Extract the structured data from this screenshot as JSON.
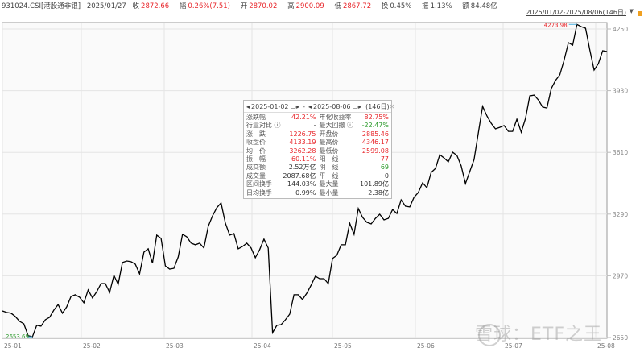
{
  "header": {
    "code": "931024.CSI[港股通非银]",
    "date": "2025/01/27",
    "close_label": "收",
    "close": "2872.66",
    "change_label": "幅",
    "change": "0.26%(7.51)",
    "open_label": "开",
    "open": "2870.02",
    "high_label": "高",
    "high": "2900.09",
    "low_label": "低",
    "low": "2867.72",
    "turnover_label": "换",
    "turnover": "0.45%",
    "amplitude_label": "振",
    "amplitude": "1.13%",
    "amount_label": "额",
    "amount": "84.48亿"
  },
  "range_selector": {
    "label": "2025/01/02-2025/08/06(146日)"
  },
  "tooltip": {
    "start_date": "2025-01-02",
    "end_date": "2025-08-06",
    "days": "(146日)",
    "sep": "-",
    "rows": [
      {
        "l1": "涨跌幅",
        "v1": "42.21%",
        "c1": "red",
        "l2": "年化收益率",
        "v2": "82.75%",
        "c2": "red"
      },
      {
        "l1": "行业对比 ⓘ",
        "v1": "-",
        "c1": "dark",
        "l2": "最大回撤 ⓘ",
        "v2": "-22.47%",
        "c2": "green"
      },
      {
        "l1": "涨　跌",
        "v1": "1226.75",
        "c1": "red",
        "l2": "开盘价",
        "v2": "2885.46",
        "c2": "red"
      },
      {
        "l1": "收盘价",
        "v1": "4133.19",
        "c1": "red",
        "l2": "最高价",
        "v2": "4346.17",
        "c2": "red"
      },
      {
        "l1": "均　价",
        "v1": "3262.28",
        "c1": "red",
        "l2": "最低价",
        "v2": "2599.08",
        "c2": "red"
      },
      {
        "l1": "振　幅",
        "v1": "60.11%",
        "c1": "red",
        "l2": "阳　线",
        "v2": "77",
        "c2": "red"
      },
      {
        "l1": "成交额",
        "v1": "2.52万亿",
        "c1": "dark",
        "l2": "阴　线",
        "v2": "69",
        "c2": "green"
      },
      {
        "l1": "成交量",
        "v1": "2087.68亿",
        "c1": "dark",
        "l2": "平　线",
        "v2": "0",
        "c2": "dark"
      },
      {
        "l1": "区间换手",
        "v1": "144.03%",
        "c1": "dark",
        "l2": "最大量",
        "v2": "101.89亿",
        "c2": "dark"
      },
      {
        "l1": "日均换手",
        "v1": "0.99%",
        "c1": "dark",
        "l2": "最小量",
        "v2": "2.38亿",
        "c2": "dark"
      }
    ]
  },
  "watermark": "雪球：ETF之王",
  "chart_data": {
    "type": "line",
    "x_tick_labels": [
      "25-01",
      "25-02",
      "25-03",
      "25-04",
      "25-05",
      "25-06",
      "25-07",
      "25-08"
    ],
    "y_ticks": [
      4250,
      3930,
      3610,
      3290,
      2970,
      2650
    ],
    "ylim": [
      2650,
      4270
    ],
    "max_label": "4273.98",
    "min_label": "2653.69",
    "line_color": "#000000",
    "max_color": "#e8262b",
    "min_color": "#2a9a2a",
    "values": [
      2788,
      2780,
      2776,
      2759,
      2734,
      2721,
      2659,
      2653.69,
      2713,
      2709,
      2742,
      2755,
      2792,
      2821,
      2776,
      2809,
      2863,
      2872,
      2859,
      2830,
      2897,
      2855,
      2888,
      2930,
      2930,
      2884,
      2972,
      2926,
      3039,
      3047,
      3043,
      3030,
      2980,
      3093,
      3110,
      3035,
      3181,
      3164,
      3022,
      3005,
      3009,
      3068,
      3185,
      3172,
      3139,
      3131,
      3139,
      3114,
      3227,
      3281,
      3323,
      3348,
      3243,
      3181,
      3189,
      3110,
      3122,
      3139,
      3114,
      3064,
      3106,
      3160,
      3114,
      2675,
      2713,
      2717,
      2742,
      2771,
      2872,
      2872,
      2847,
      2880,
      2922,
      2968,
      2955,
      2955,
      2930,
      3060,
      3076,
      3131,
      3131,
      3243,
      3185,
      3319,
      3273,
      3248,
      3239,
      3268,
      3289,
      3260,
      3268,
      3314,
      3293,
      3364,
      3331,
      3327,
      3377,
      3402,
      3452,
      3427,
      3506,
      3527,
      3598,
      3581,
      3561,
      3611,
      3594,
      3540,
      3448,
      3511,
      3573,
      3711,
      3849,
      3799,
      3761,
      3732,
      3740,
      3749,
      3719,
      3719,
      3782,
      3715,
      3786,
      3903,
      3907,
      3882,
      3845,
      3840,
      3941,
      3983,
      4012,
      4087,
      4179,
      4166,
      4273.98,
      4262,
      4254,
      4141,
      4037,
      4070,
      4137,
      4133.19
    ]
  }
}
